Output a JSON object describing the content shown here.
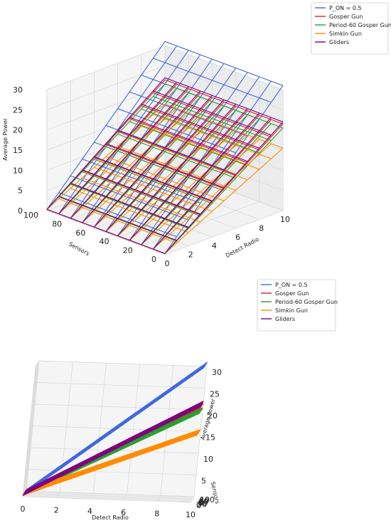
{
  "chart_data": [
    {
      "type": "surface3d-wireframe",
      "view": "elevated-perspective",
      "x_label": "Detect Radio",
      "y_label": "Sensors",
      "z_label": "Average Power",
      "x_ticks": [
        "0",
        "2",
        "4",
        "6",
        "8",
        "10"
      ],
      "y_ticks": [
        "0",
        "20",
        "40",
        "60",
        "80",
        "100"
      ],
      "z_ticks": [
        "0",
        "5",
        "10",
        "15",
        "20",
        "25",
        "30"
      ],
      "x_range": [
        0,
        10
      ],
      "y_range": [
        0,
        100
      ],
      "z_range": [
        0,
        30
      ],
      "legend_position": "top-right",
      "series": [
        {
          "name": "P_ON = 0.5",
          "color": "#4169e1",
          "z_at_max_x": 31,
          "z_at_x0": 0.3
        },
        {
          "name": "Gosper Gun",
          "color": "#d62728",
          "z_at_max_x": 21.5,
          "z_at_x0": 0.3
        },
        {
          "name": "Period-60 Gosper Gun",
          "color": "#2ca02c",
          "z_at_max_x": 20.5,
          "z_at_x0": 0.3
        },
        {
          "name": "Simkin Gun",
          "color": "#ff8c00",
          "z_at_max_x": 15.5,
          "z_at_x0": 0.3
        },
        {
          "name": "Gliders",
          "color": "#800080",
          "z_at_max_x": 22,
          "z_at_x0": 0.3
        }
      ]
    },
    {
      "type": "surface3d-wireframe",
      "view": "low-angle",
      "x_label": "Detect Radio",
      "y_label": "Sensors",
      "z_label": "Average Power",
      "x_ticks": [
        "0",
        "2",
        "4",
        "6",
        "8",
        "10"
      ],
      "y_ticks": [
        "0",
        "20",
        "40",
        "60",
        "80",
        "100"
      ],
      "z_ticks": [
        "0",
        "5",
        "10",
        "15",
        "20",
        "25",
        "30"
      ],
      "x_range": [
        0,
        10
      ],
      "y_range": [
        0,
        100
      ],
      "z_range": [
        0,
        30
      ],
      "legend_position": "top-right",
      "series": [
        {
          "name": "P_ON = 0.5",
          "color": "#4169e1",
          "z_at_max_x": 31,
          "z_at_x0": 0.3
        },
        {
          "name": "Gosper Gun",
          "color": "#d62728",
          "z_at_max_x": 21.5,
          "z_at_x0": 0.3
        },
        {
          "name": "Period-60 Gosper Gun",
          "color": "#2ca02c",
          "z_at_max_x": 20.5,
          "z_at_x0": 0.3
        },
        {
          "name": "Simkin Gun",
          "color": "#ff8c00",
          "z_at_max_x": 15.5,
          "z_at_x0": 0.3
        },
        {
          "name": "Gliders",
          "color": "#800080",
          "z_at_max_x": 22,
          "z_at_x0": 0.3
        }
      ]
    }
  ]
}
